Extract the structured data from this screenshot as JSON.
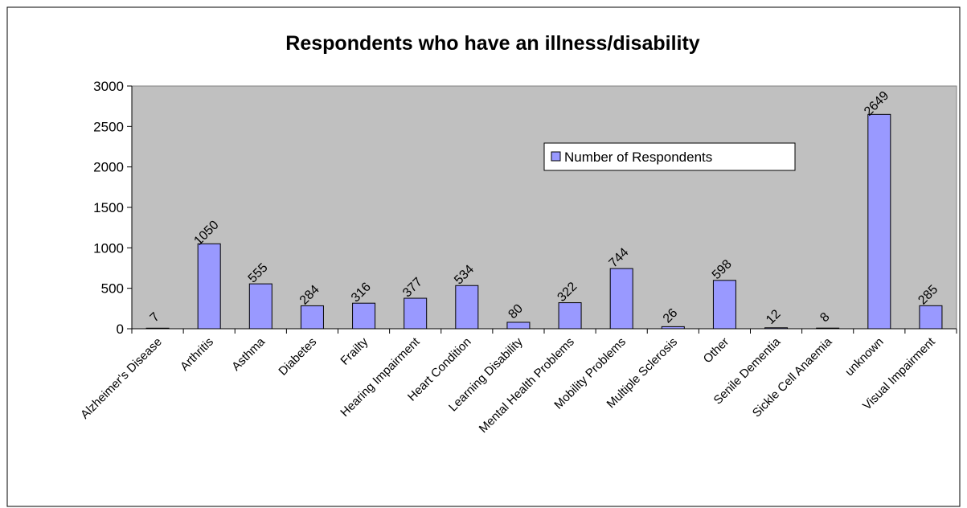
{
  "chart_data": {
    "type": "bar",
    "title": "Respondents who have an illness/disability",
    "xlabel": "",
    "ylabel": "",
    "ylim": [
      0,
      3000
    ],
    "yticks": [
      0,
      500,
      1000,
      1500,
      2000,
      2500,
      3000
    ],
    "categories": [
      "Alzheimer's Disease",
      "Arthritis",
      "Asthma",
      "Diabetes",
      "Frailty",
      "Hearing Impairment",
      "Heart Condition",
      "Learning Disability",
      "Mental Health Problems",
      "Mobility Problems",
      "Multiple Sclerosis",
      "Other",
      "Senile Dementia",
      "Sickle Cell Anaemia",
      "unknown",
      "Visual Impairment"
    ],
    "series": [
      {
        "name": "Number of Respondents",
        "values": [
          7,
          1050,
          555,
          284,
          316,
          377,
          534,
          80,
          322,
          744,
          26,
          598,
          12,
          8,
          2649,
          285
        ]
      }
    ],
    "legend": "upper-right inside plot",
    "grid": false,
    "colors": {
      "bar_fill": "#9999ff",
      "bar_stroke": "#000000",
      "plot_background": "#c0c0c0"
    }
  }
}
